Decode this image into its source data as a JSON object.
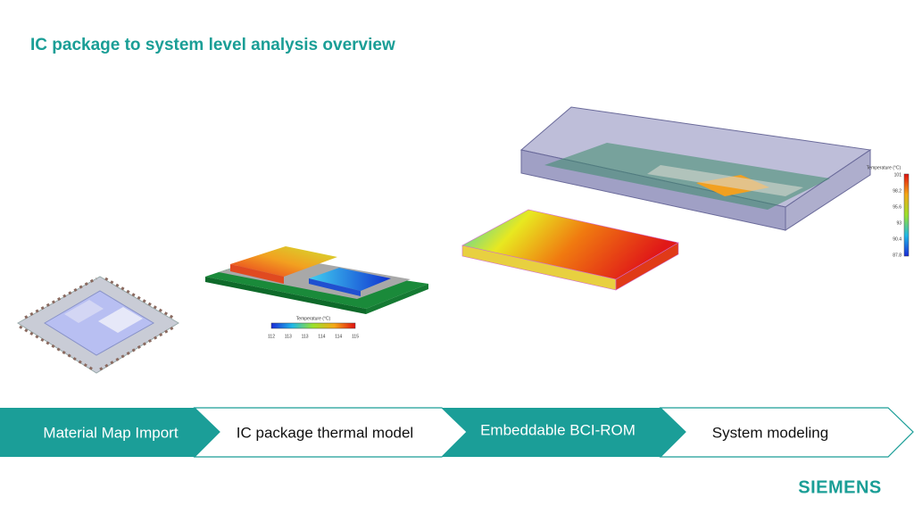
{
  "header": {
    "title": "IC package to system level analysis overview"
  },
  "figures": {
    "package_colorbar": {
      "title": "Temperature (°C)",
      "ticks": [
        "112",
        "113",
        "113",
        "114",
        "114",
        "115"
      ]
    },
    "system_colorbar": {
      "title": "Temperature (°C)",
      "ticks": [
        "101",
        "98.2",
        "95.6",
        "93",
        "90.4",
        "87.8"
      ]
    }
  },
  "process": {
    "steps": [
      "Material Map Import",
      "IC package thermal model",
      "Embeddable BCI-ROM",
      "System modeling"
    ]
  },
  "footer": {
    "logo": "SIEMENS"
  }
}
